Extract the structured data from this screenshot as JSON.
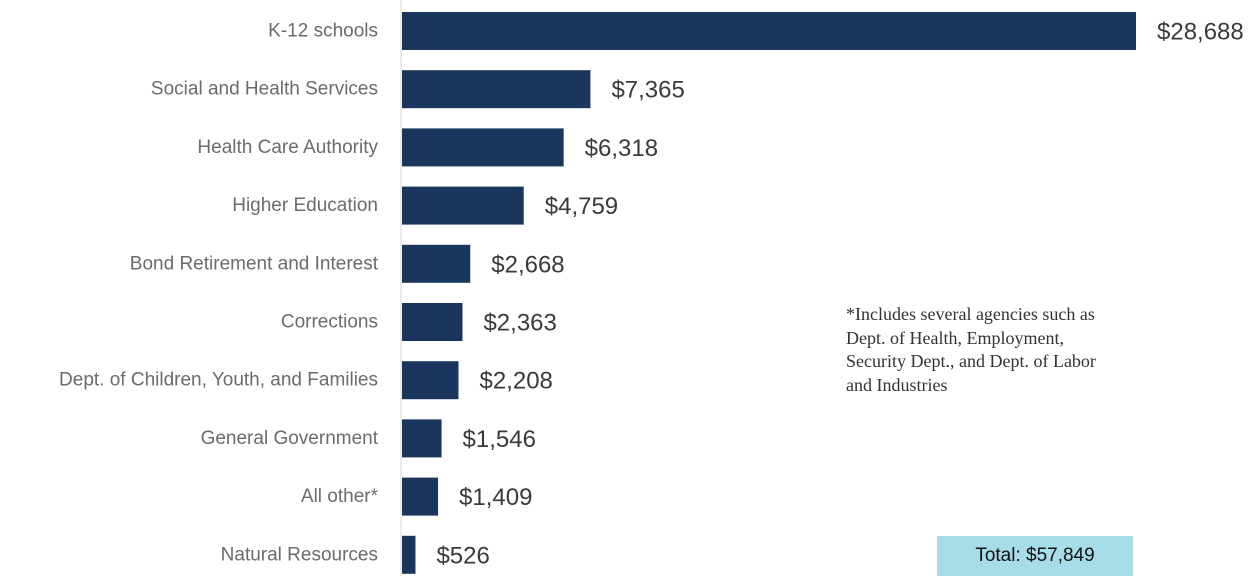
{
  "chart_data": {
    "type": "bar",
    "orientation": "horizontal",
    "categories": [
      "K-12 schools",
      "Social and Health Services",
      "Health Care Authority",
      "Higher Education",
      "Bond Retirement and Interest",
      "Corrections",
      "Dept. of Children, Youth, and Families",
      "General Government",
      "All other*",
      "Natural Resources"
    ],
    "values": [
      28688,
      7365,
      6318,
      4759,
      2668,
      2363,
      2208,
      1546,
      1409,
      526
    ],
    "value_labels": [
      "$28,688",
      "$7,365",
      "$6,318",
      "$4,759",
      "$2,668",
      "$2,363",
      "$2,208",
      "$1,546",
      "$1,409",
      "$526"
    ],
    "title": "",
    "xlabel": "",
    "ylabel": "",
    "xlim": [
      0,
      28688
    ],
    "grid": false,
    "legend": "none",
    "bar_color": "#1b365d",
    "axis_color": "#d9d9d9"
  },
  "footnote": "*Includes several agencies such as Dept. of Health, Employment, Security Dept., and Dept. of Labor and Industries",
  "total": {
    "label": "Total: $57,849",
    "background": "#a7dde8"
  }
}
